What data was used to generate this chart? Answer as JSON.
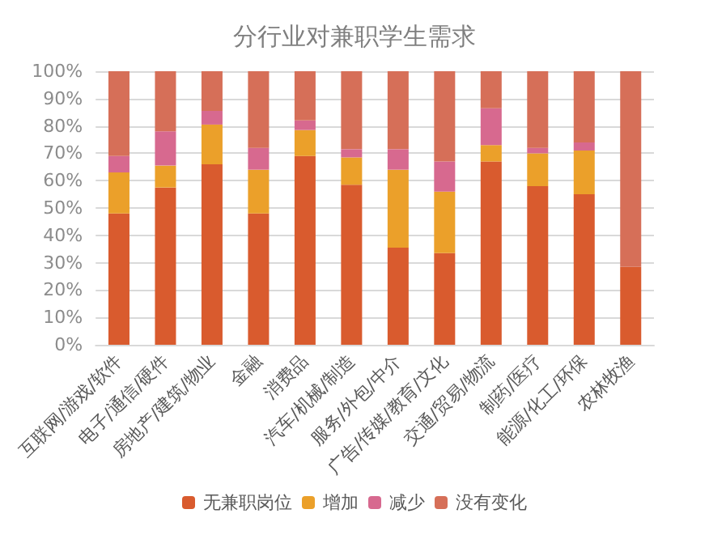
{
  "chart_data": {
    "type": "bar",
    "title": "分行业对兼职学生需求",
    "stacked": true,
    "categories": [
      "互联网/游戏/软件",
      "电子/通信/硬件",
      "房地产/建筑/物业",
      "金融",
      "消费品",
      "汽车/机械/制造",
      "服务/外包/中介",
      "广告/传媒/教育/文化",
      "交通/贸易/物流",
      "制药/医疗",
      "能源/化工/环保",
      "农林牧渔"
    ],
    "series": [
      {
        "name": "无兼职岗位",
        "color": "#d95b2e",
        "values": [
          48,
          57.5,
          66,
          48,
          69,
          58.5,
          35.5,
          33.5,
          67,
          58,
          55,
          28.5
        ]
      },
      {
        "name": "增加",
        "color": "#eba02a",
        "values": [
          15,
          8,
          14.5,
          16,
          9.5,
          10,
          28.5,
          22.5,
          6,
          12,
          16,
          0
        ]
      },
      {
        "name": "减少",
        "color": "#d7698f",
        "values": [
          6,
          12.5,
          5,
          8,
          3.5,
          3,
          7.5,
          11,
          13.5,
          2,
          3,
          0
        ]
      },
      {
        "name": "没有变化",
        "color": "#d66f58",
        "values": [
          31,
          22,
          14.5,
          28,
          18,
          28.5,
          28.5,
          33,
          13.5,
          28,
          26,
          71.5
        ]
      }
    ],
    "ylim": [
      0,
      100
    ],
    "yticks": [
      {
        "value": 0,
        "label": "0%"
      },
      {
        "value": 10,
        "label": "10%"
      },
      {
        "value": 20,
        "label": "20%"
      },
      {
        "value": 30,
        "label": "30%"
      },
      {
        "value": 40,
        "label": "40%"
      },
      {
        "value": 50,
        "label": "50%"
      },
      {
        "value": 60,
        "label": "60%"
      },
      {
        "value": 70,
        "label": "70%"
      },
      {
        "value": 80,
        "label": "80%"
      },
      {
        "value": 90,
        "label": "90%"
      },
      {
        "value": 100,
        "label": "100%"
      }
    ],
    "grid": "y",
    "legend": "bottom"
  }
}
